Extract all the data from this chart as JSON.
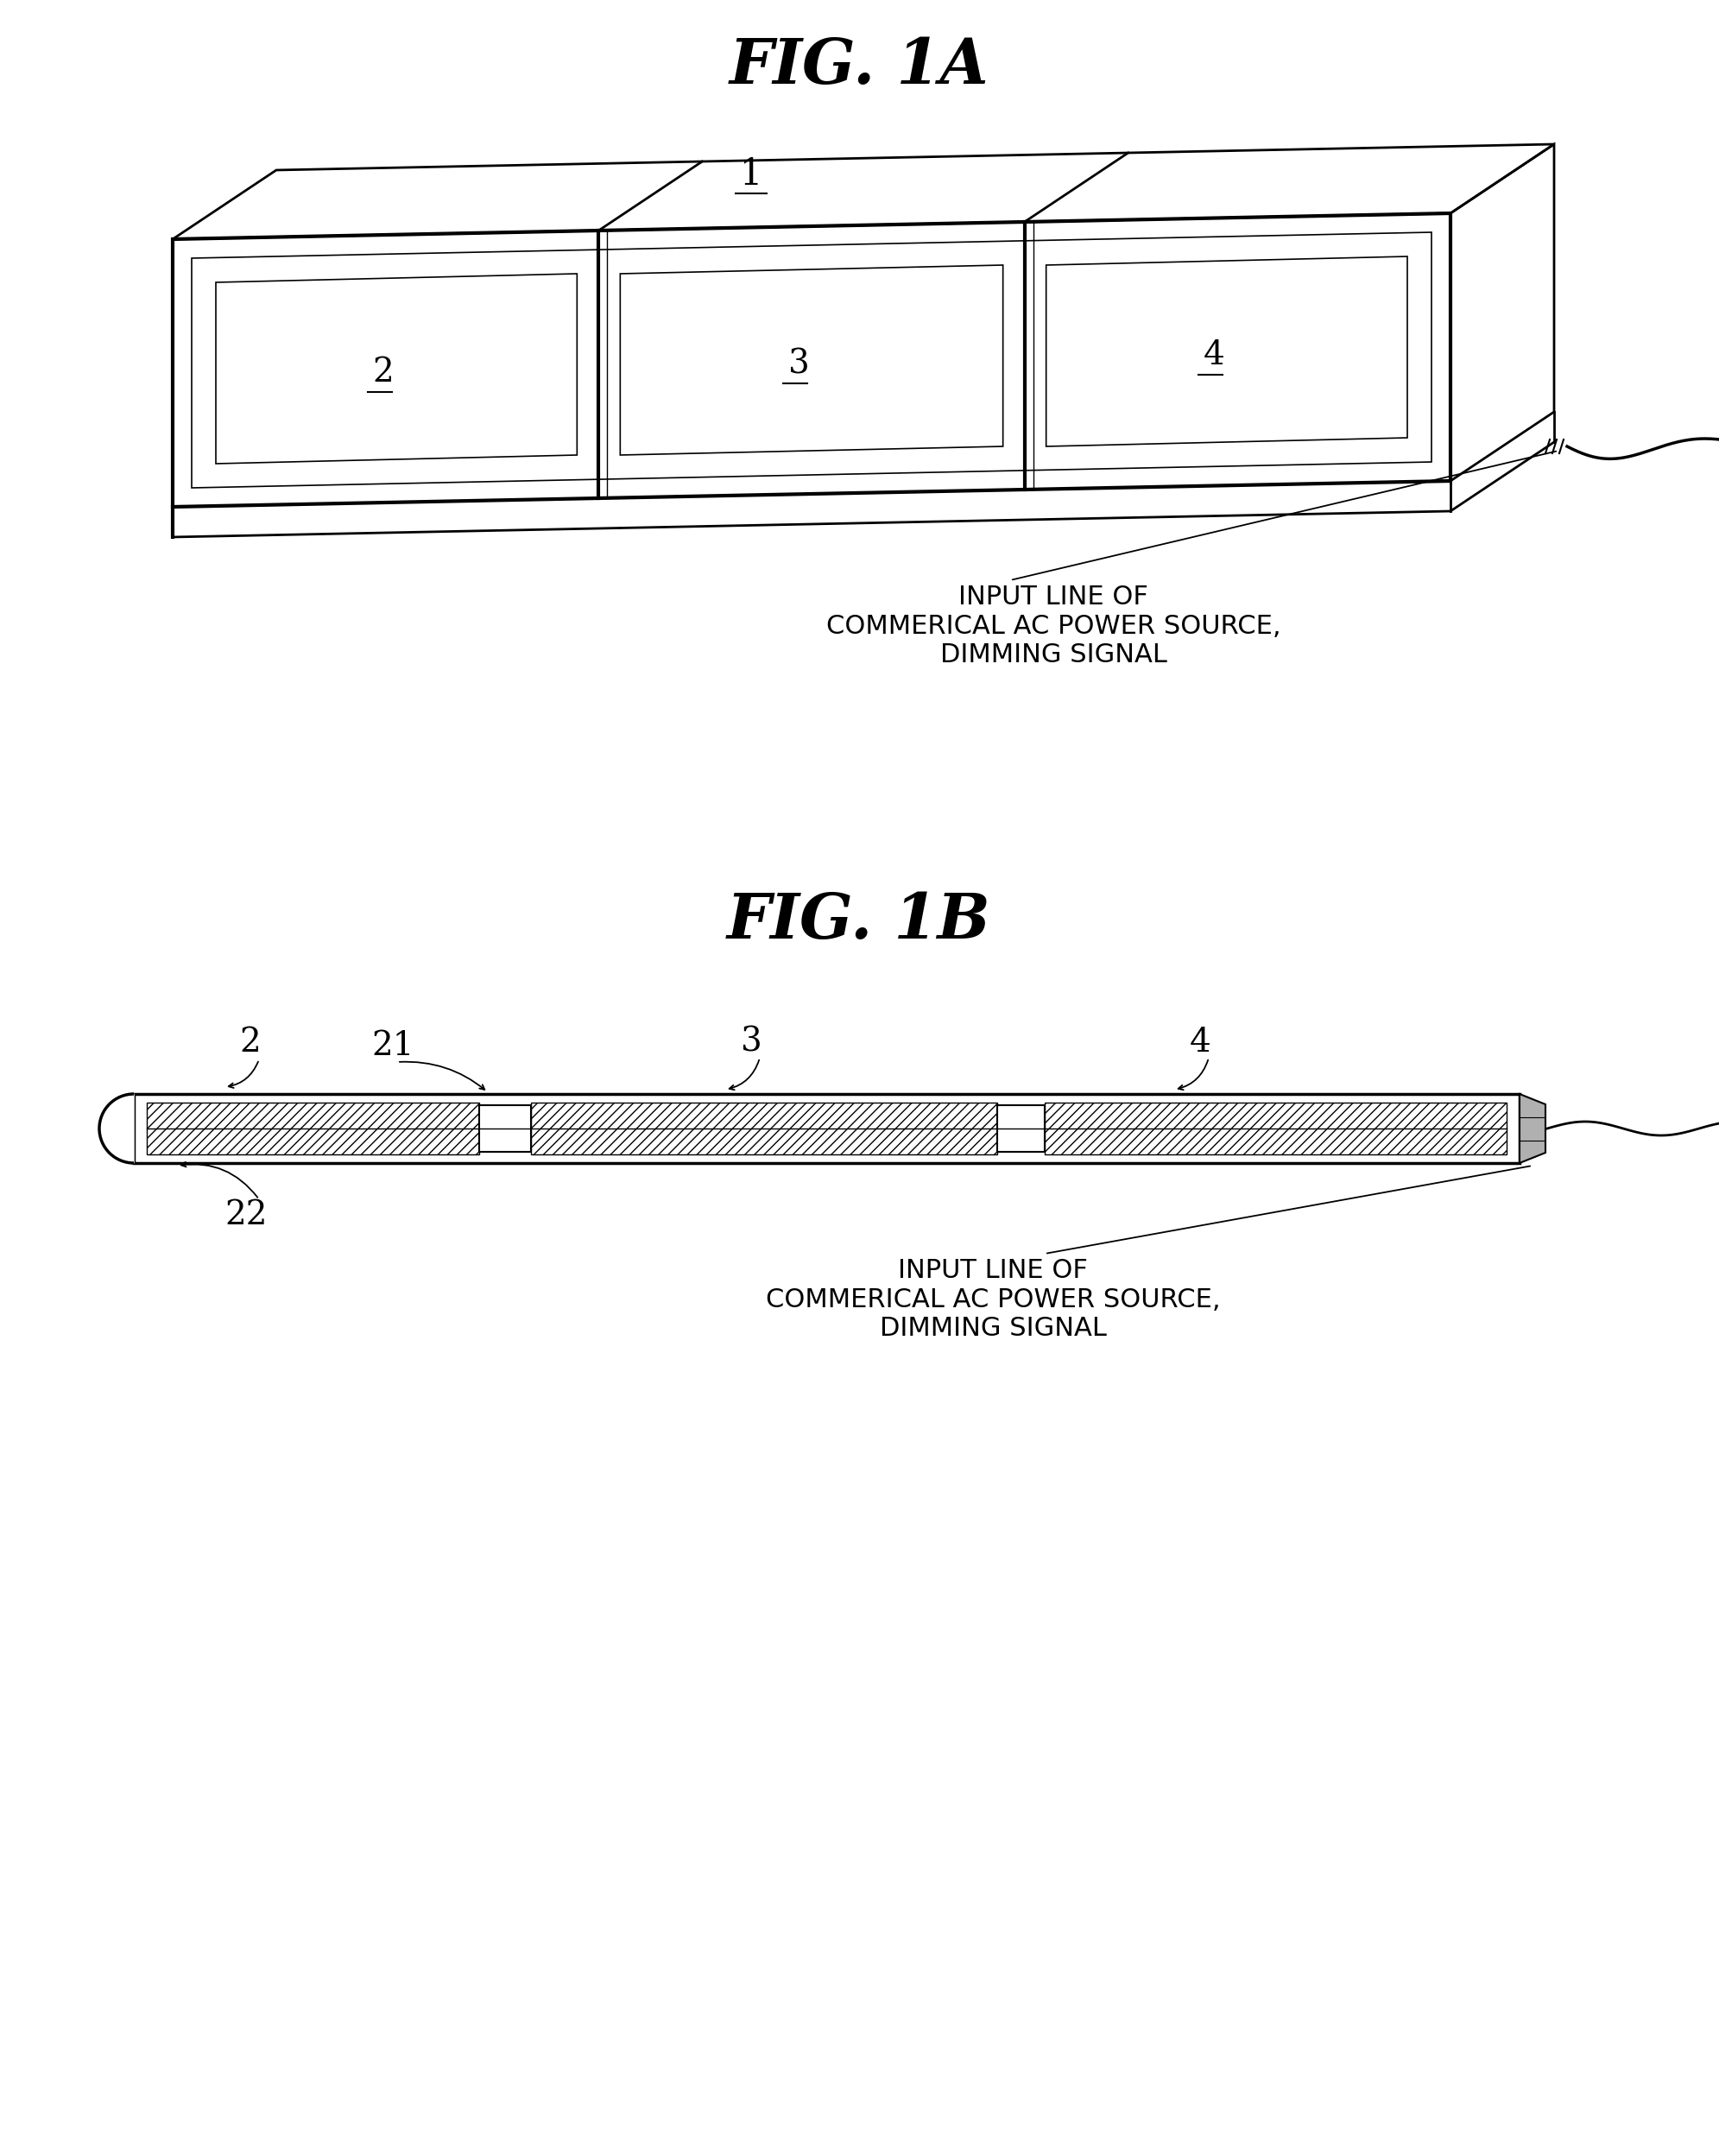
{
  "bg_color": "#ffffff",
  "fig_title_1A": "FIG. 1A",
  "fig_title_1B": "FIG. 1B",
  "label_1": "1",
  "label_2": "2",
  "label_3": "3",
  "label_4": "4",
  "label_21": "21",
  "label_22": "22",
  "input_line_text": "INPUT LINE OF\nCOMMERICAL AC POWER SOURCE,\nDIMMING SIGNAL",
  "line_color": "#000000",
  "font_size_title": 52,
  "font_size_label": 28,
  "font_size_annot": 22
}
